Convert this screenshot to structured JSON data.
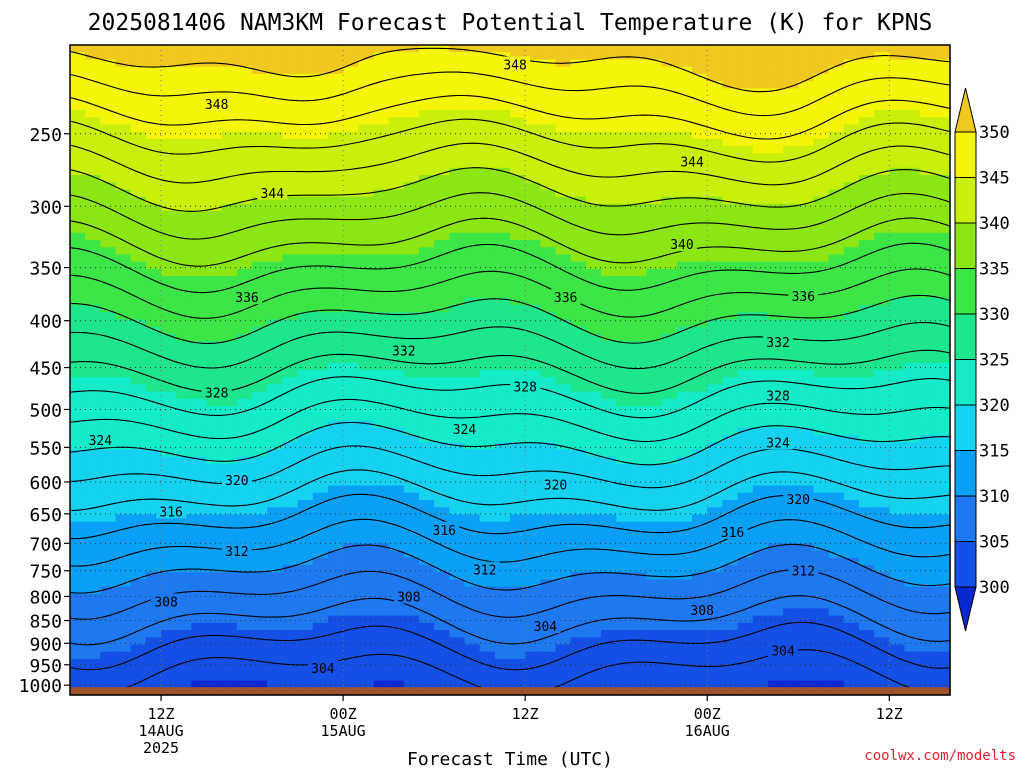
{
  "chart_data": {
    "type": "heatmap",
    "title": "2025081406 NAM3KM Forecast Potential Temperature (K) for KPNS",
    "xlabel": "Forecast Time (UTC)",
    "ylabel": "",
    "credit": "coolwx.com/modelts",
    "y_scale": "log-pressure",
    "y_ticks": [
      250,
      300,
      350,
      400,
      450,
      500,
      550,
      600,
      650,
      700,
      750,
      800,
      850,
      900,
      950,
      1000
    ],
    "y_range_hpa": [
      200,
      1025
    ],
    "x_range_hours": [
      -3,
      84
    ],
    "x_ticks": [
      {
        "hour": 6,
        "label": "12Z",
        "sub1": "14AUG",
        "sub2": "2025"
      },
      {
        "hour": 24,
        "label": "00Z",
        "sub1": "15AUG",
        "sub2": ""
      },
      {
        "hour": 42,
        "label": "12Z",
        "sub1": "",
        "sub2": ""
      },
      {
        "hour": 60,
        "label": "00Z",
        "sub1": "16AUG",
        "sub2": ""
      },
      {
        "hour": 78,
        "label": "12Z",
        "sub1": "",
        "sub2": ""
      }
    ],
    "colorbar": {
      "levels": [
        300,
        305,
        310,
        315,
        320,
        325,
        330,
        335,
        340,
        345,
        350
      ],
      "colors": [
        "#0a28d2",
        "#1450e6",
        "#1e78f0",
        "#0aa0f5",
        "#14d2f0",
        "#14ebc8",
        "#1ee68c",
        "#3ce646",
        "#8ce614",
        "#c8f00a",
        "#f5f50a",
        "#f0c81e"
      ],
      "extend": "both"
    },
    "grid": true,
    "contour_labels": [
      {
        "value": "348",
        "hour": 41,
        "hpa": 210
      },
      {
        "value": "348",
        "hour": 11.5,
        "hpa": 232
      },
      {
        "value": "344",
        "hour": 17,
        "hpa": 290
      },
      {
        "value": "344",
        "hour": 58.5,
        "hpa": 268
      },
      {
        "value": "340",
        "hour": 57.5,
        "hpa": 330
      },
      {
        "value": "336",
        "hour": 14.5,
        "hpa": 377
      },
      {
        "value": "336",
        "hour": 46,
        "hpa": 377
      },
      {
        "value": "336",
        "hour": 69.5,
        "hpa": 376
      },
      {
        "value": "332",
        "hour": 30,
        "hpa": 431
      },
      {
        "value": "332",
        "hour": 67,
        "hpa": 422
      },
      {
        "value": "328",
        "hour": 11.5,
        "hpa": 479
      },
      {
        "value": "328",
        "hour": 42,
        "hpa": 472
      },
      {
        "value": "328",
        "hour": 67,
        "hpa": 483
      },
      {
        "value": "324",
        "hour": 0,
        "hpa": 540
      },
      {
        "value": "324",
        "hour": 36,
        "hpa": 525
      },
      {
        "value": "324",
        "hour": 67,
        "hpa": 543
      },
      {
        "value": "320",
        "hour": 13.5,
        "hpa": 597
      },
      {
        "value": "320",
        "hour": 45,
        "hpa": 604
      },
      {
        "value": "320",
        "hour": 69,
        "hpa": 626
      },
      {
        "value": "316",
        "hour": 7,
        "hpa": 646
      },
      {
        "value": "316",
        "hour": 34,
        "hpa": 677
      },
      {
        "value": "316",
        "hour": 62.5,
        "hpa": 680
      },
      {
        "value": "312",
        "hour": 13.5,
        "hpa": 714
      },
      {
        "value": "312",
        "hour": 38,
        "hpa": 748
      },
      {
        "value": "312",
        "hour": 69.5,
        "hpa": 750
      },
      {
        "value": "308",
        "hour": 6.5,
        "hpa": 810
      },
      {
        "value": "308",
        "hour": 30.5,
        "hpa": 800
      },
      {
        "value": "308",
        "hour": 59.5,
        "hpa": 828
      },
      {
        "value": "304",
        "hour": 44,
        "hpa": 862
      },
      {
        "value": "304",
        "hour": 67.5,
        "hpa": 917
      },
      {
        "value": "304",
        "hour": 22,
        "hpa": 958
      }
    ]
  }
}
